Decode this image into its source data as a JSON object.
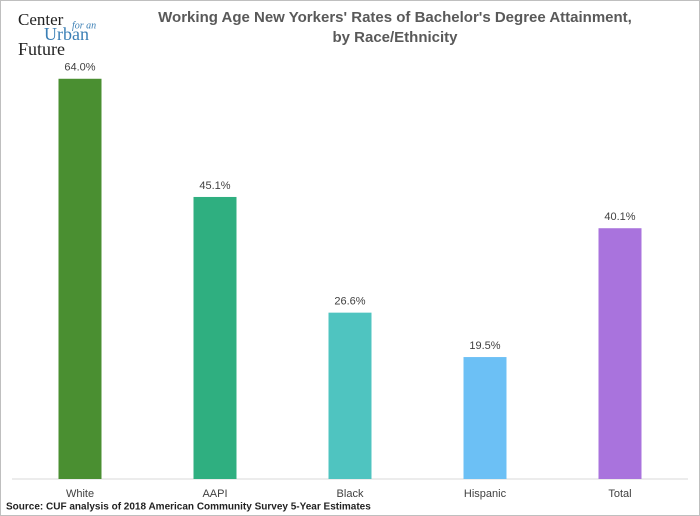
{
  "logo": {
    "line1": "Center",
    "line2": "for an",
    "line3": "Urban",
    "line4": "Future"
  },
  "chart_data": {
    "type": "bar",
    "title": "Working Age New Yorkers' Rates of Bachelor's Degree Attainment,",
    "subtitle": "by Race/Ethnicity",
    "categories": [
      "White",
      "AAPI",
      "Black",
      "Hispanic",
      "Total"
    ],
    "values": [
      64.0,
      45.1,
      26.6,
      19.5,
      40.1
    ],
    "value_labels": [
      "64.0%",
      "45.1%",
      "26.6%",
      "19.5%",
      "40.1%"
    ],
    "colors": [
      "#4a8f31",
      "#2faf80",
      "#4fc4c0",
      "#6cc0f5",
      "#a973dd"
    ],
    "ylim": [
      0,
      67
    ],
    "source": "Source: CUF analysis of 2018 American Community Survey 5-Year Estimates"
  }
}
